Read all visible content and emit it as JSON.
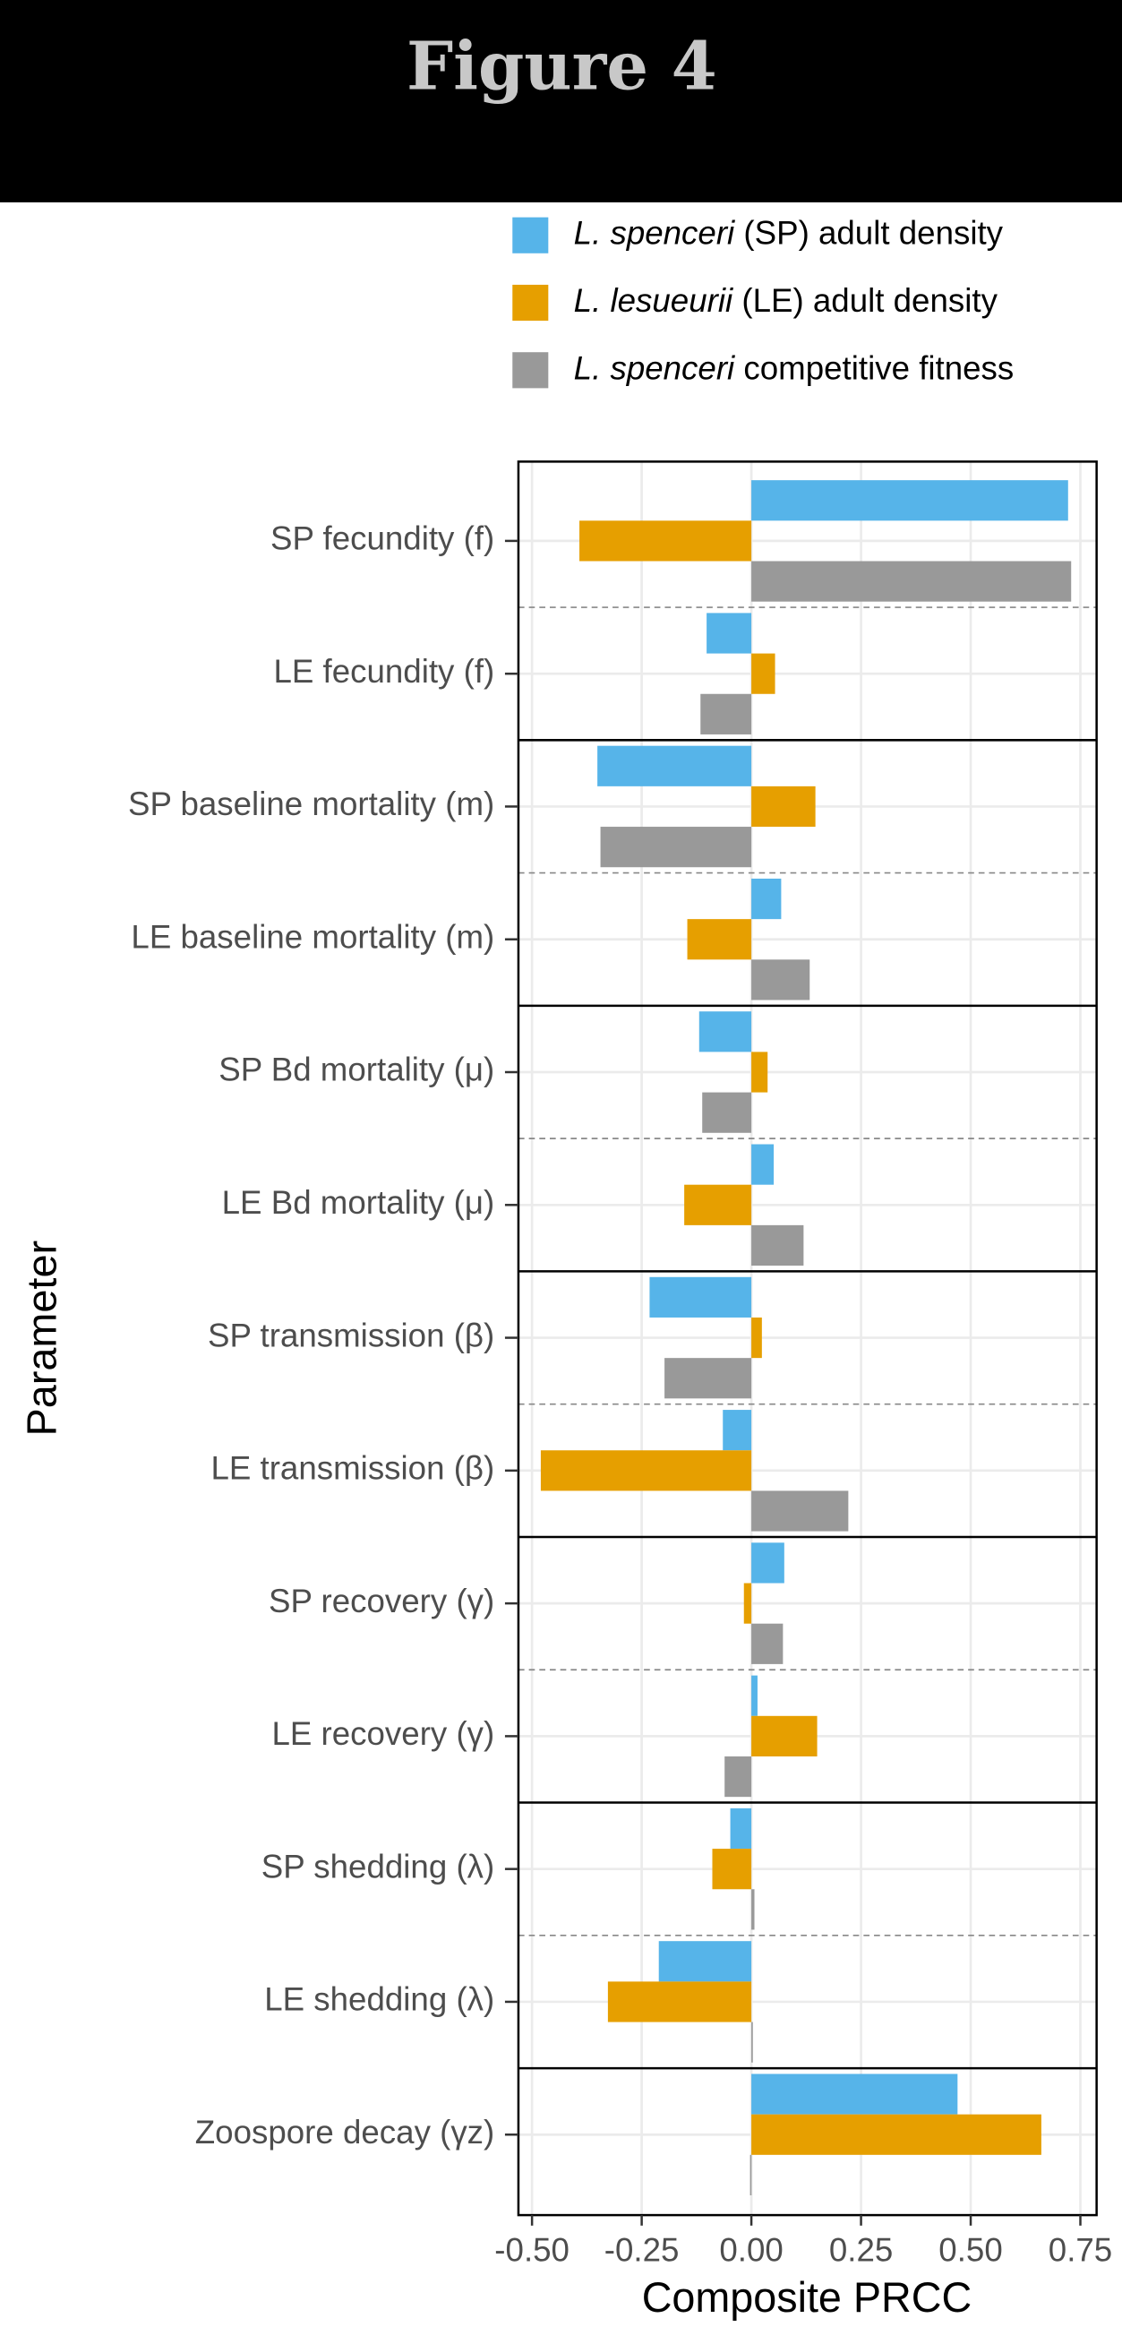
{
  "chart_data": {
    "type": "bar",
    "orientation": "horizontal",
    "title": "Figure 4",
    "xlabel": "Composite PRCC",
    "ylabel": "Parameter",
    "categories": [
      "SP fecundity (f)",
      "LE fecundity (f)",
      "SP baseline mortality (m)",
      "LE baseline mortality (m)",
      "SP Bd mortality (μ)",
      "LE Bd mortality (μ)",
      "SP transmission (β)",
      "LE transmission (β)",
      "SP recovery (γ)",
      "LE recovery (γ)",
      "SP shedding (λ)",
      "LE shedding (λ)",
      "Zoospore decay (γz)"
    ],
    "series": [
      {
        "name": "L. spenceri (SP) adult density",
        "color": "#56b4e9",
        "values": [
          0.722,
          -0.102,
          -0.351,
          0.068,
          -0.119,
          0.051,
          -0.232,
          -0.065,
          0.075,
          0.014,
          -0.048,
          -0.211,
          0.47
        ]
      },
      {
        "name": "L. lesueurii (LE) adult density",
        "color": "#e69f00",
        "values": [
          -0.392,
          0.054,
          0.146,
          -0.146,
          0.037,
          -0.153,
          0.024,
          -0.48,
          -0.017,
          0.15,
          -0.089,
          -0.327,
          0.661
        ]
      },
      {
        "name": "L. spenceri competitive fitness",
        "color": "#999999",
        "values": [
          0.729,
          -0.116,
          -0.344,
          0.133,
          -0.112,
          0.119,
          -0.198,
          0.221,
          0.072,
          -0.061,
          0.007,
          0.003,
          -0.003
        ]
      }
    ],
    "xlim": [
      -0.531,
      0.787
    ],
    "xticks": [
      {
        "value": -0.5,
        "label": "-0.50"
      },
      {
        "value": -0.25,
        "label": "-0.25"
      },
      {
        "value": 0,
        "label": "0.00"
      },
      {
        "value": 0.25,
        "label": "0.25"
      },
      {
        "value": 0.5,
        "label": "0.50"
      },
      {
        "value": 0.75,
        "label": "0.75"
      }
    ],
    "grid": true
  }
}
